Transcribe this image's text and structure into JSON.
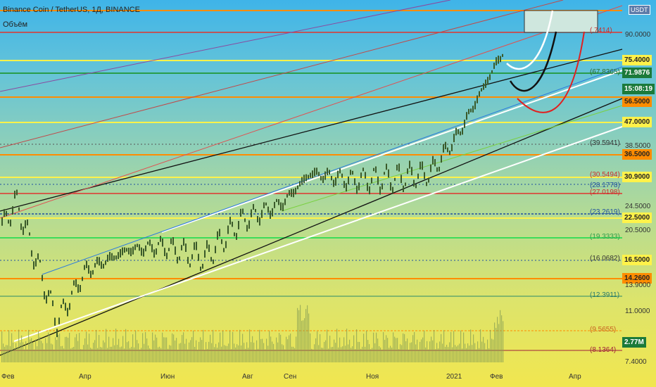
{
  "header": {
    "title": "Binance Coin / TetherUS, 1Д, BINANCE",
    "volume_label": "Объём",
    "currency": "USDT"
  },
  "colors": {
    "red_level": "#e0352f",
    "orange_level": "#ff8c00",
    "yellow_level": "#fff24a",
    "green_level": "#2a9d4a",
    "blue_level": "#1e4fa0",
    "channel_black": "#111111",
    "channel_white": "#ffffff",
    "candle": "#3a5a2a"
  },
  "chart_data": {
    "type": "candlestick",
    "log_scale": true,
    "x_ticks": [
      "Фев",
      "Апр",
      "Июн",
      "Авг",
      "Сен",
      "Ноя",
      "2021",
      "Фев",
      "Апр"
    ],
    "y_ticks": [
      "90.0000",
      "38.5000",
      "24.5000",
      "20.5000",
      "13.9000",
      "11.0000",
      "7.4000"
    ],
    "level_tags": [
      "(.7414)",
      "(67.8365)",
      "(39.5941)",
      "(30.5494)",
      "(28.1778)",
      "(27.0198)",
      "(23.2619)",
      "(19.3333)",
      "(16.0682)",
      "(12.3911)",
      "(9.5655)",
      "(8.1364)"
    ],
    "price_badges": [
      {
        "label": "75.4000",
        "color": "#fff24a",
        "text_color": "#222"
      },
      {
        "label": "71.9876",
        "color": "#1b7a3a",
        "text_color": "#fff"
      },
      {
        "label": "15:08:19",
        "color": "#1b7a3a",
        "text_color": "#fff"
      },
      {
        "label": "56.5000",
        "color": "#ff8c00",
        "text_color": "#222"
      },
      {
        "label": "47.0000",
        "color": "#fff24a",
        "text_color": "#222"
      },
      {
        "label": "36.5000",
        "color": "#ff8c00",
        "text_color": "#222"
      },
      {
        "label": "30.9000",
        "color": "#fff24a",
        "text_color": "#222"
      },
      {
        "label": "22.5000",
        "color": "#fff24a",
        "text_color": "#222"
      },
      {
        "label": "16.5000",
        "color": "#fff24a",
        "text_color": "#222"
      },
      {
        "label": "14.2600",
        "color": "#ff8c00",
        "text_color": "#222"
      },
      {
        "label": "2.77M",
        "color": "#1b7a3a",
        "text_color": "#fff"
      }
    ],
    "volume_label": "2.77M",
    "close_series": [
      {
        "x": "Фев",
        "y": 20.5
      },
      {
        "x": "Мар",
        "y": 24.5
      },
      {
        "x": "Мар",
        "y": 10.0
      },
      {
        "x": "Апр",
        "y": 14.5
      },
      {
        "x": "Май",
        "y": 17.0
      },
      {
        "x": "Июн",
        "y": 17.5
      },
      {
        "x": "Июл",
        "y": 16.0
      },
      {
        "x": "Авг",
        "y": 21.0
      },
      {
        "x": "Сен",
        "y": 24.0
      },
      {
        "x": "Сен",
        "y": 30.0
      },
      {
        "x": "Окт",
        "y": 28.5
      },
      {
        "x": "Ноя",
        "y": 29.0
      },
      {
        "x": "Дек",
        "y": 30.0
      },
      {
        "x": "2021",
        "y": 40.0
      },
      {
        "x": "Фев",
        "y": 75.0
      }
    ]
  }
}
